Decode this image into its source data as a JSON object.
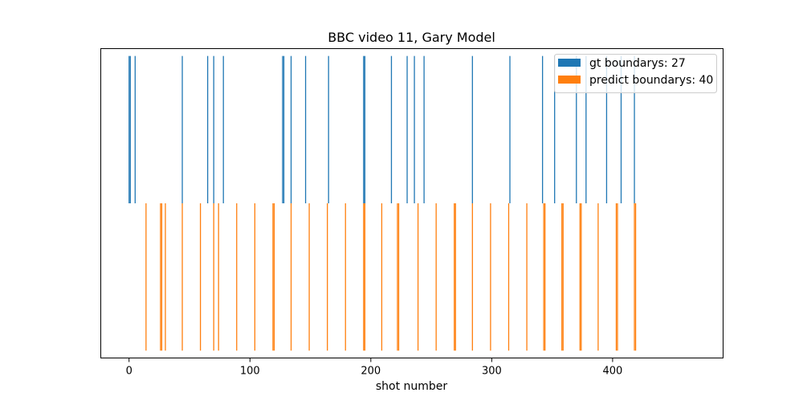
{
  "chart_data": {
    "type": "bar",
    "title": "BBC video 11, Gary Model",
    "xlabel": "shot number",
    "ylabel": "",
    "xlim": [
      -23.4,
      491.4
    ],
    "x_ticks": [
      0,
      100,
      200,
      300,
      400
    ],
    "x_tick_labels": [
      "0",
      "100",
      "200",
      "300",
      "400"
    ],
    "y_ticks_visible": false,
    "legend_position": "top-right",
    "series": [
      {
        "name": "gt boundarys: 27",
        "color": "#1f77b4",
        "y_range": [
          0,
          1
        ],
        "x": [
          0,
          1,
          5,
          44,
          65,
          70,
          78,
          127,
          128,
          134,
          146,
          165,
          194,
          195,
          217,
          230,
          236,
          244,
          284,
          315,
          342,
          352,
          370,
          378,
          395,
          407,
          418
        ]
      },
      {
        "name": "predict boundarys: 40",
        "color": "#ff7f0e",
        "y_range": [
          -1,
          0
        ],
        "x": [
          14,
          26,
          27,
          30,
          44,
          59,
          70,
          74,
          89,
          104,
          119,
          120,
          134,
          149,
          164,
          179,
          194,
          195,
          209,
          222,
          223,
          239,
          254,
          269,
          270,
          284,
          299,
          314,
          329,
          343,
          344,
          358,
          359,
          373,
          374,
          388,
          403,
          404,
          418,
          419
        ]
      }
    ]
  }
}
